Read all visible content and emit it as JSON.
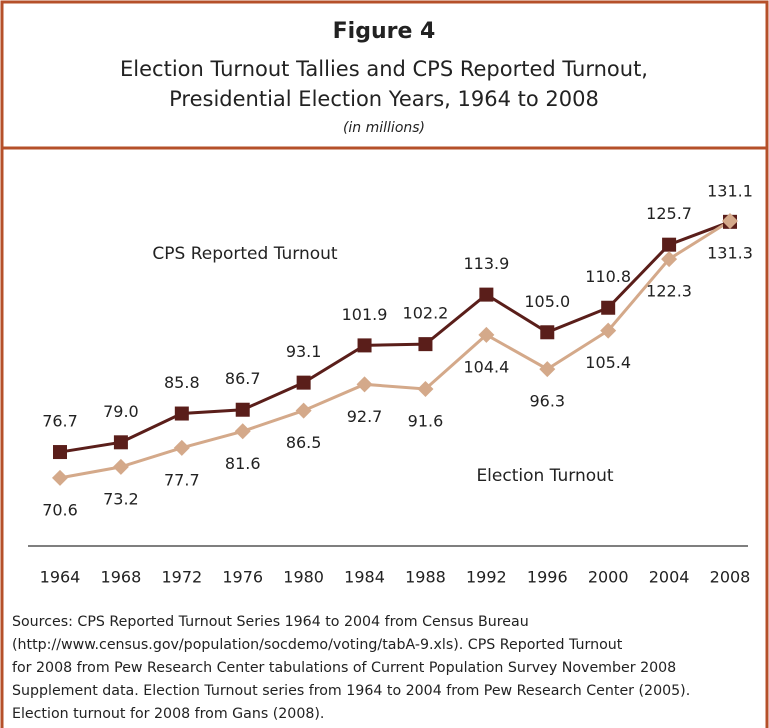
{
  "chart_data": {
    "type": "line",
    "title": "Figure 4",
    "subtitle": [
      "Election Turnout Tallies and CPS Reported Turnout,",
      "Presidential Election Years, 1964 to 2008"
    ],
    "unit_note": "(in millions)",
    "categories": [
      "1964",
      "1968",
      "1972",
      "1976",
      "1980",
      "1984",
      "1988",
      "1992",
      "1996",
      "2000",
      "2004",
      "2008"
    ],
    "ylim": [
      54.5,
      145
    ],
    "series": [
      {
        "name": "CPS Reported Turnout",
        "color": "#5a1e1a",
        "marker": "square",
        "values": [
          76.7,
          79.0,
          85.8,
          86.7,
          93.1,
          101.9,
          102.2,
          113.9,
          105.0,
          110.8,
          125.7,
          131.1
        ],
        "value_labels": [
          "76.7",
          "79.0",
          "85.8",
          "86.7",
          "93.1",
          "101.9",
          "102.2",
          "113.9",
          "105.0",
          "110.8",
          "125.7",
          "131.1"
        ]
      },
      {
        "name": "Election Turnout",
        "color": "#d4a98a",
        "marker": "diamond",
        "values": [
          70.6,
          73.2,
          77.7,
          81.6,
          86.5,
          92.7,
          91.6,
          104.4,
          96.3,
          105.4,
          122.3,
          131.3
        ],
        "value_labels": [
          "70.6",
          "73.2",
          "77.7",
          "81.6",
          "86.5",
          "92.7",
          "91.6",
          "104.4",
          "96.3",
          "105.4",
          "122.3",
          "131.3"
        ]
      }
    ],
    "source": [
      "Sources: CPS Reported Turnout Series 1964 to 2004 from Census Bureau",
      "(http://www.census.gov/population/socdemo/voting/tabA-9.xls). CPS Reported Turnout",
      "for 2008 from Pew Research Center tabulations of Current Population Survey November 2008",
      "Supplement data. Election Turnout series from 1964 to 2004 from Pew Research Center (2005).",
      "Election turnout for 2008 from Gans (2008)."
    ]
  }
}
